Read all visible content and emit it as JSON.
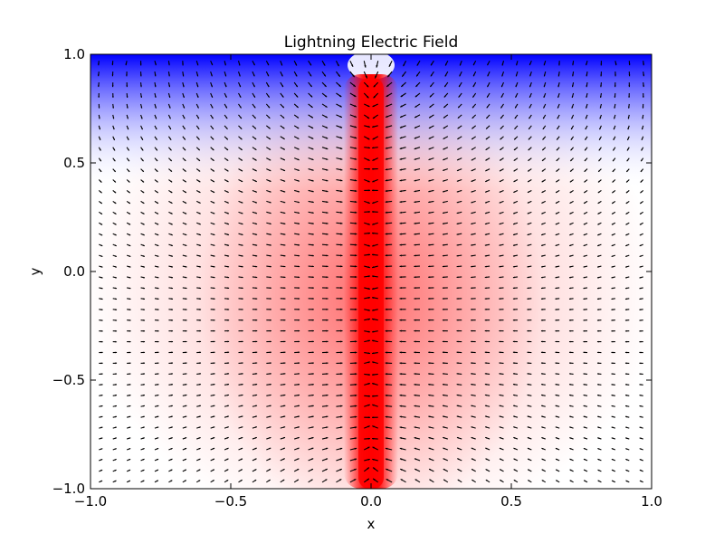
{
  "chart_data": {
    "type": "quiver",
    "title": "Lightning Electric Field",
    "xlabel": "x",
    "ylabel": "y",
    "xlim": [
      -1.0,
      1.0
    ],
    "ylim": [
      -1.0,
      1.0
    ],
    "x_ticks": [
      "−1.0",
      "−0.5",
      "0.0",
      "0.5",
      "1.0"
    ],
    "y_ticks": [
      "−1.0",
      "−0.5",
      "0.0",
      "0.5",
      "1.0"
    ],
    "grid": false,
    "legend": "none",
    "background_field": {
      "colormap": "bwr",
      "colors": {
        "positive": "#ff0000",
        "neutral": "#ffffff",
        "negative": "#0000ff"
      },
      "channel": {
        "x_min": -0.1,
        "x_max": 0.1,
        "y_min": -1.0,
        "y_max": 0.9
      },
      "ground_charge_band": {
        "y_min": 0.4,
        "y_max": 1.0
      }
    },
    "arrows": {
      "color": "#000000",
      "grid_count": [
        40,
        40
      ],
      "pattern": "field lines converging toward the vertical channel at x = 0 and diverging near the top edge y = 1.0"
    }
  }
}
